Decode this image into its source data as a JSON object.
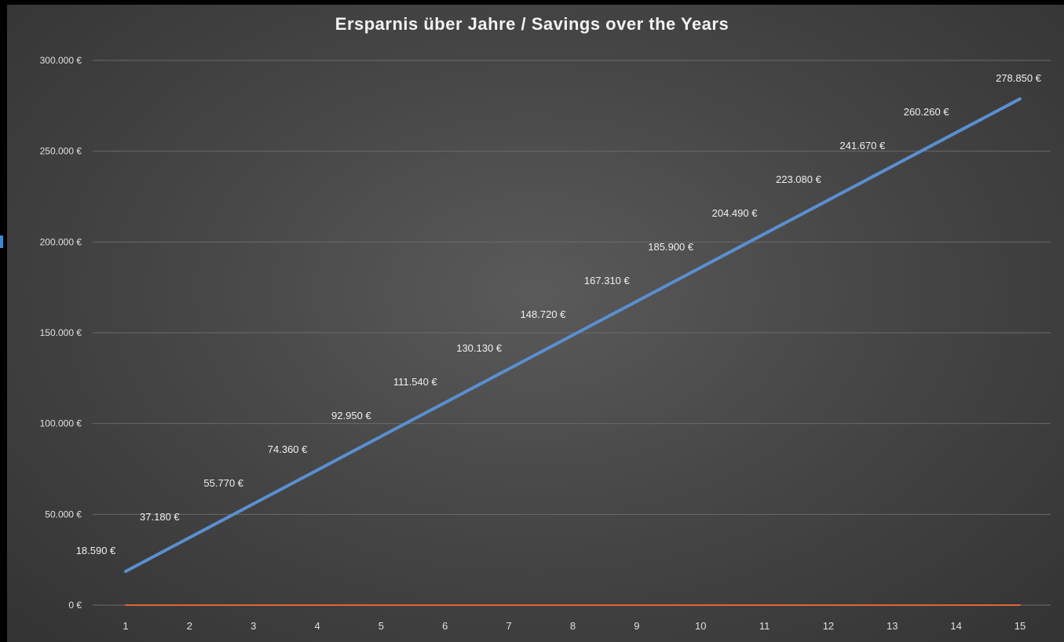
{
  "chart_data": {
    "type": "line",
    "title": "Ersparnis über Jahre / Savings over the Years",
    "xlabel": "",
    "ylabel": "",
    "categories": [
      "1",
      "2",
      "3",
      "4",
      "5",
      "6",
      "7",
      "8",
      "9",
      "10",
      "11",
      "12",
      "13",
      "14",
      "15"
    ],
    "ylim": [
      0,
      300000
    ],
    "yticks": [
      0,
      50000,
      100000,
      150000,
      200000,
      250000,
      300000
    ],
    "ytick_labels": [
      "0 €",
      "50.000 €",
      "100.000 €",
      "150.000 €",
      "200.000 €",
      "250.000 €",
      "300.000 €"
    ],
    "grid": true,
    "legend": "none",
    "series": [
      {
        "values": [
          18590,
          37180,
          55770,
          74360,
          92950,
          111540,
          130130,
          148720,
          167310,
          185900,
          204490,
          223080,
          241670,
          260260,
          278850
        ],
        "labels": [
          "18.590 €",
          "37.180 €",
          "55.770 €",
          "74.360 €",
          "92.950 €",
          "111.540 €",
          "130.130 €",
          "148.720 €",
          "167.310 €",
          "185.900 €",
          "204.490 €",
          "223.080 €",
          "241.670 €",
          "260.260 €",
          "278.850 €"
        ],
        "color": "#5b8fd0"
      },
      {
        "values": [
          0,
          0,
          0,
          0,
          0,
          0,
          0,
          0,
          0,
          0,
          0,
          0,
          0,
          0,
          0
        ],
        "color": "#e0653a"
      }
    ]
  }
}
